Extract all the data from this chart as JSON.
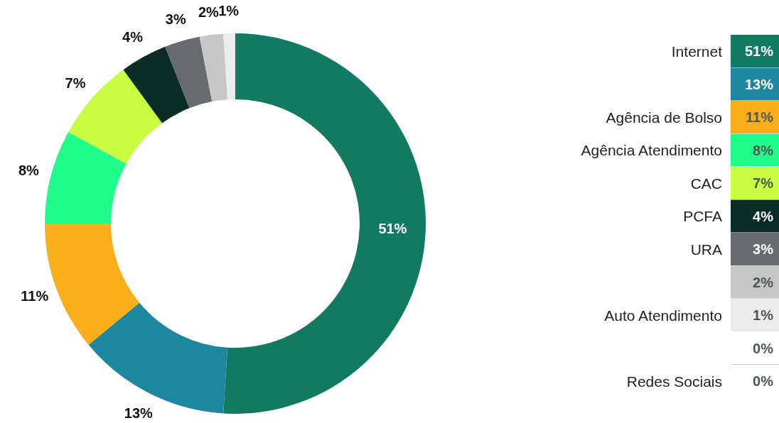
{
  "chart_data": {
    "type": "donut",
    "categories": [
      "Internet",
      null,
      "Agência de Bolso",
      "Agência Atendimento",
      "CAC",
      "PCFA",
      "URA",
      null,
      "Auto Atendimento",
      null,
      "Redes Sociais"
    ],
    "values": [
      51,
      13,
      11,
      8,
      7,
      4,
      3,
      2,
      1,
      0,
      0
    ],
    "value_labels": [
      "51%",
      "13%",
      "11%",
      "8%",
      "7%",
      "4%",
      "3%",
      "2%",
      "1%",
      "0%",
      "0%"
    ],
    "colors": [
      "#127a63",
      "#1e87a0",
      "#f9ae1a",
      "#21fd8a",
      "#c8fd41",
      "#0c2d27",
      "#676b6d",
      "#c6c6c6",
      "#ebebeb",
      "#ffffff",
      "#ffffff"
    ],
    "legend": "right"
  }
}
